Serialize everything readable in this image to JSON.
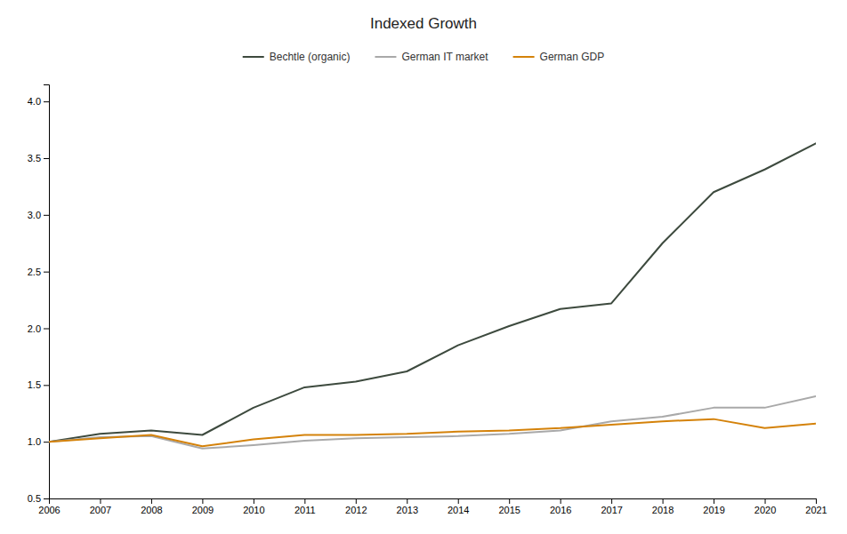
{
  "chart_data": {
    "type": "line",
    "title": "Indexed Growth",
    "x": [
      2006,
      2007,
      2008,
      2009,
      2010,
      2011,
      2012,
      2013,
      2014,
      2015,
      2016,
      2017,
      2018,
      2019,
      2020,
      2021
    ],
    "series": [
      {
        "name": "Bechtle (organic)",
        "color": "#3d4a3e",
        "values": [
          1.0,
          1.07,
          1.1,
          1.06,
          1.3,
          1.48,
          1.53,
          1.62,
          1.85,
          2.02,
          2.17,
          2.22,
          2.75,
          3.2,
          3.4,
          3.63
        ]
      },
      {
        "name": "German IT market",
        "color": "#a9a9a9",
        "values": [
          1.0,
          1.04,
          1.05,
          0.94,
          0.97,
          1.01,
          1.03,
          1.04,
          1.05,
          1.07,
          1.1,
          1.18,
          1.22,
          1.3,
          1.3,
          1.4
        ]
      },
      {
        "name": "German GDP",
        "color": "#d4820a",
        "values": [
          1.0,
          1.03,
          1.06,
          0.96,
          1.02,
          1.06,
          1.06,
          1.07,
          1.09,
          1.1,
          1.12,
          1.15,
          1.18,
          1.2,
          1.12,
          1.16
        ]
      }
    ],
    "xlim": [
      2006,
      2021
    ],
    "xticks": [
      2006,
      2007,
      2008,
      2009,
      2010,
      2011,
      2012,
      2013,
      2014,
      2015,
      2016,
      2017,
      2018,
      2019,
      2020,
      2021
    ],
    "ylim": [
      0.5,
      4.15
    ],
    "yticks": [
      0.5,
      {
        "value": 1.0,
        "label": "1.0"
      },
      1.5,
      {
        "value": 2.0,
        "label": "2.0"
      },
      2.5,
      {
        "value": 3.0,
        "label": "3.0"
      },
      3.5,
      {
        "value": 4.0,
        "label": "4.0"
      }
    ],
    "grid": false,
    "legend": "top"
  }
}
